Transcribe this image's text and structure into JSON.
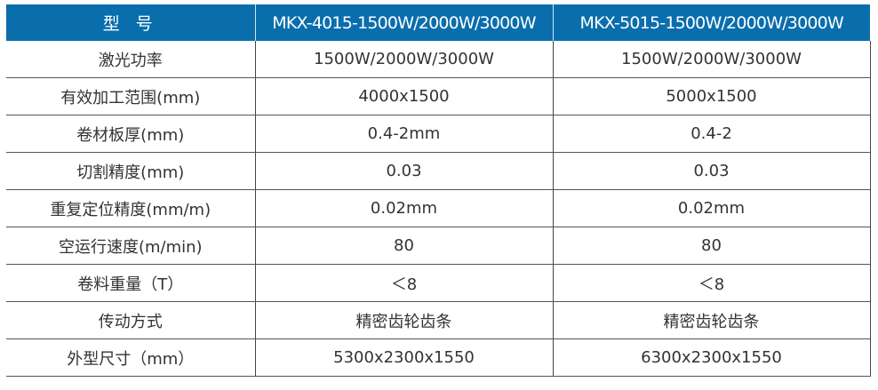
{
  "header": [
    "型 号",
    "MKX-4015-1500W/2000W/3000W",
    "MKX-5015-1500W/2000W/3000W"
  ],
  "rows": [
    [
      "激光功率",
      "1500W/2000W/3000W",
      "1500W/2000W/3000W"
    ],
    [
      "有效加工范围(mm)",
      "4000x1500",
      "5000x1500"
    ],
    [
      "卷材板厚(mm)",
      "0.4-2mm",
      "0.4-2"
    ],
    [
      "切割精度(mm)",
      "0.03",
      "0.03"
    ],
    [
      "重复定位精度(mm/m)",
      "0.02mm",
      "0.02mm"
    ],
    [
      "空运行速度(m/min)",
      "80",
      "80"
    ],
    [
      "卷料重量（T）",
      "＜8",
      "＜8"
    ],
    [
      "传动方式",
      "精密齿轮齿条",
      "精密齿轮齿条"
    ],
    [
      "外型尺寸（mm）",
      "5300x2300x1550",
      "6300x2300x1550"
    ]
  ],
  "colors": {
    "header_bg": "#0a6ead",
    "header_text": "#ffffff",
    "text": "#333333"
  }
}
